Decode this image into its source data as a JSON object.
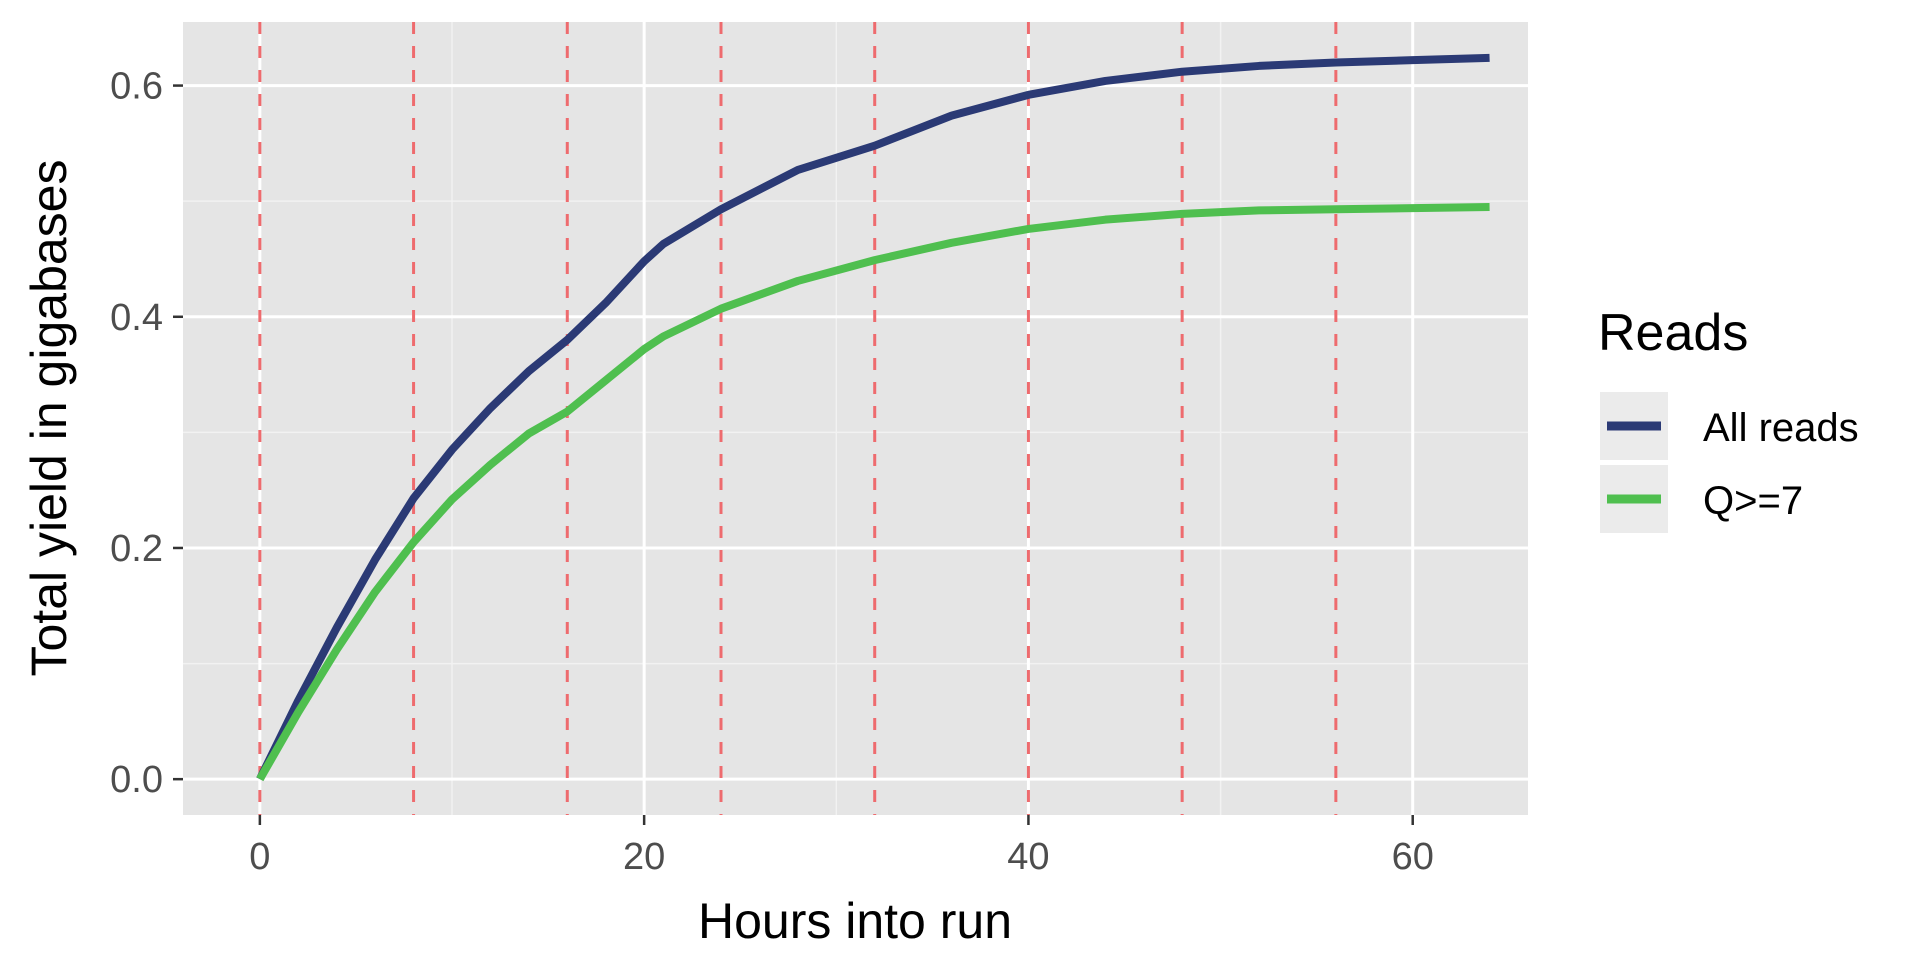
{
  "chart_data": {
    "type": "line",
    "xlabel": "Hours into run",
    "ylabel": "Total yield in gigabases",
    "xlim": [
      -4,
      66
    ],
    "ylim": [
      -0.031,
      0.655
    ],
    "x_ticks": [
      0,
      20,
      40,
      60
    ],
    "x_tick_labels": [
      "0",
      "20",
      "40",
      "60"
    ],
    "y_ticks": [
      0.0,
      0.2,
      0.4,
      0.6
    ],
    "y_tick_labels": [
      "0.0",
      "0.2",
      "0.4",
      "0.6"
    ],
    "grid": true,
    "reference_lines": {
      "orientation": "vertical",
      "style": "dashed",
      "color": "#ee6b6e",
      "x": [
        0,
        8,
        16,
        24,
        32,
        40,
        48,
        56
      ]
    },
    "legend": {
      "title": "Reads",
      "placement": "right"
    },
    "series": [
      {
        "name": "All reads",
        "color": "#2b3a75",
        "x": [
          0,
          2,
          4,
          6,
          8,
          10,
          12,
          14,
          16,
          18,
          20,
          21,
          24,
          28,
          32,
          36,
          40,
          44,
          48,
          52,
          56,
          60,
          64
        ],
        "y": [
          0.0,
          0.068,
          0.131,
          0.19,
          0.243,
          0.285,
          0.321,
          0.353,
          0.38,
          0.412,
          0.448,
          0.463,
          0.493,
          0.527,
          0.548,
          0.574,
          0.592,
          0.604,
          0.612,
          0.617,
          0.62,
          0.622,
          0.624
        ]
      },
      {
        "name": "Q>=7",
        "color": "#4fbf4f",
        "x": [
          0,
          2,
          4,
          6,
          8,
          10,
          12,
          14,
          16,
          18,
          20,
          21,
          24,
          28,
          32,
          36,
          40,
          44,
          48,
          52,
          56,
          60,
          64
        ],
        "y": [
          0.0,
          0.058,
          0.112,
          0.162,
          0.205,
          0.242,
          0.272,
          0.299,
          0.318,
          0.345,
          0.372,
          0.383,
          0.407,
          0.431,
          0.449,
          0.464,
          0.476,
          0.484,
          0.489,
          0.492,
          0.493,
          0.494,
          0.495
        ]
      }
    ]
  }
}
